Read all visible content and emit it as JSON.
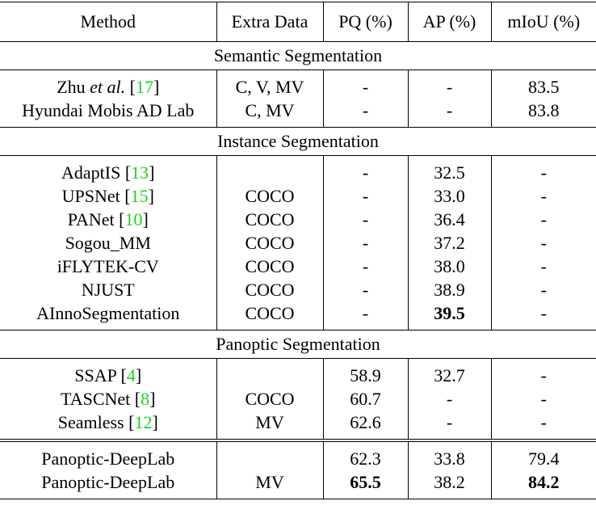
{
  "table": {
    "header": [
      "Method",
      "Extra Data",
      "PQ (%)",
      "AP (%)",
      "mIoU (%)"
    ],
    "sections": [
      {
        "title": "Semantic Segmentation",
        "rows": [
          {
            "cells": [
              "Zhu et al. [17]",
              "C, V, MV",
              "-",
              "-",
              "83.5"
            ]
          },
          {
            "cells": [
              "Hyundai Mobis AD Lab",
              "C, MV",
              "-",
              "-",
              "83.8"
            ]
          }
        ]
      },
      {
        "title": "Instance Segmentation",
        "rows": [
          {
            "cells": [
              "AdaptIS [13]",
              "",
              "-",
              "32.5",
              "-"
            ]
          },
          {
            "cells": [
              "UPSNet [15]",
              "COCO",
              "-",
              "33.0",
              "-"
            ]
          },
          {
            "cells": [
              "PANet [10]",
              "COCO",
              "-",
              "36.4",
              "-"
            ]
          },
          {
            "cells": [
              "Sogou_MM",
              "COCO",
              "-",
              "37.2",
              "-"
            ]
          },
          {
            "cells": [
              "iFLYTEK-CV",
              "COCO",
              "-",
              "38.0",
              "-"
            ]
          },
          {
            "cells": [
              "NJUST",
              "COCO",
              "-",
              "38.9",
              "-"
            ]
          },
          {
            "cells": [
              "AInnoSegmentation",
              "COCO",
              "-",
              "39.5",
              "-"
            ],
            "bold": [
              3
            ]
          }
        ]
      },
      {
        "title": "Panoptic Segmentation",
        "rows": [
          {
            "cells": [
              "SSAP [4]",
              "",
              "58.9",
              "32.7",
              "-"
            ]
          },
          {
            "cells": [
              "TASCNet [8]",
              "COCO",
              "60.7",
              "-",
              "-"
            ]
          },
          {
            "cells": [
              "Seamless [12]",
              "MV",
              "62.6",
              "-",
              "-"
            ]
          }
        ]
      }
    ],
    "final_rows": [
      {
        "cells": [
          "Panoptic-DeepLab",
          "",
          "62.3",
          "33.8",
          "79.4"
        ]
      },
      {
        "cells": [
          "Panoptic-DeepLab",
          "MV",
          "65.5",
          "38.2",
          "84.2"
        ],
        "bold": [
          2,
          4
        ]
      }
    ]
  }
}
